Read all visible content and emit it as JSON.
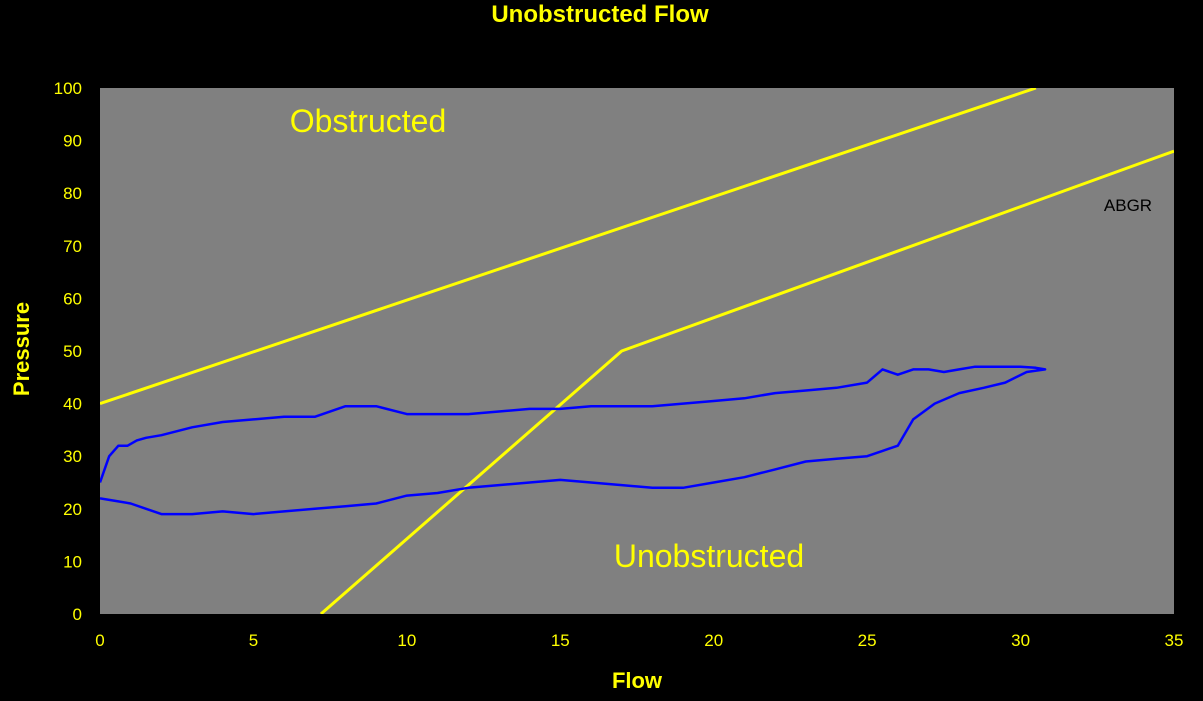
{
  "chart_data": {
    "type": "line",
    "title": "Unobstructed Flow",
    "xlabel": "Flow",
    "ylabel": "Pressure",
    "xlim": [
      0,
      35
    ],
    "ylim": [
      0,
      100
    ],
    "xticks": [
      0,
      5,
      10,
      15,
      20,
      25,
      30,
      35
    ],
    "yticks": [
      0,
      10,
      20,
      30,
      40,
      50,
      60,
      70,
      80,
      90,
      100
    ],
    "grid": false,
    "legend": "none",
    "annotations": {
      "obstructed": "Obstructed",
      "unobstructed": "Unobstructed",
      "abgr": "ABGR"
    },
    "colors": {
      "background": "#000000",
      "plot_area": "#808080",
      "text": "#FFFF00",
      "boundary": "#FFFF00",
      "trace": "#0000FF",
      "annotation_dark": "#000000"
    },
    "series": [
      {
        "role": "boundary",
        "x": [
          0,
          30.5
        ],
        "y": [
          40,
          100
        ]
      },
      {
        "role": "boundary",
        "x": [
          7.2,
          17,
          35
        ],
        "y": [
          0,
          50,
          88
        ]
      },
      {
        "role": "pressure-flow-trace",
        "x": [
          0,
          0.3,
          0.6,
          0.9,
          1.2,
          1.5,
          2,
          3,
          4,
          5,
          6,
          7,
          8,
          9,
          10,
          11,
          12,
          13,
          14,
          15,
          16,
          17,
          18,
          19,
          20,
          21,
          22,
          23,
          24,
          25,
          25.5,
          26,
          26.5,
          27,
          27.5,
          28,
          28.5,
          29,
          29.5,
          30,
          30.5,
          30.8,
          30.2,
          29.5,
          28.8,
          28,
          27.2,
          26.5,
          26,
          25.5,
          25,
          24,
          23,
          22,
          21,
          20,
          19,
          18,
          17,
          16,
          15,
          14,
          13,
          12,
          11,
          10,
          9,
          8,
          7,
          6,
          5,
          4,
          3,
          2,
          1,
          0.5,
          0
        ],
        "y": [
          25,
          30,
          32,
          32,
          33,
          33.5,
          34,
          35.5,
          36.5,
          37,
          37.5,
          37.5,
          39.5,
          39.5,
          38,
          38,
          38,
          38.5,
          39,
          39,
          39.5,
          39.5,
          39.5,
          40,
          40.5,
          41,
          42,
          42.5,
          43,
          44,
          46.5,
          45.5,
          46.5,
          46.5,
          46,
          46.5,
          47,
          47,
          47,
          47,
          46.8,
          46.5,
          46,
          44,
          43,
          42,
          40,
          37,
          32,
          31,
          30,
          29.5,
          29,
          27.5,
          26,
          25,
          24,
          24,
          24.5,
          25,
          25.5,
          25,
          24.5,
          24,
          23,
          22.5,
          21,
          20.5,
          20,
          19.5,
          19,
          19.5,
          19,
          19,
          21,
          21.5,
          22
        ]
      }
    ]
  }
}
